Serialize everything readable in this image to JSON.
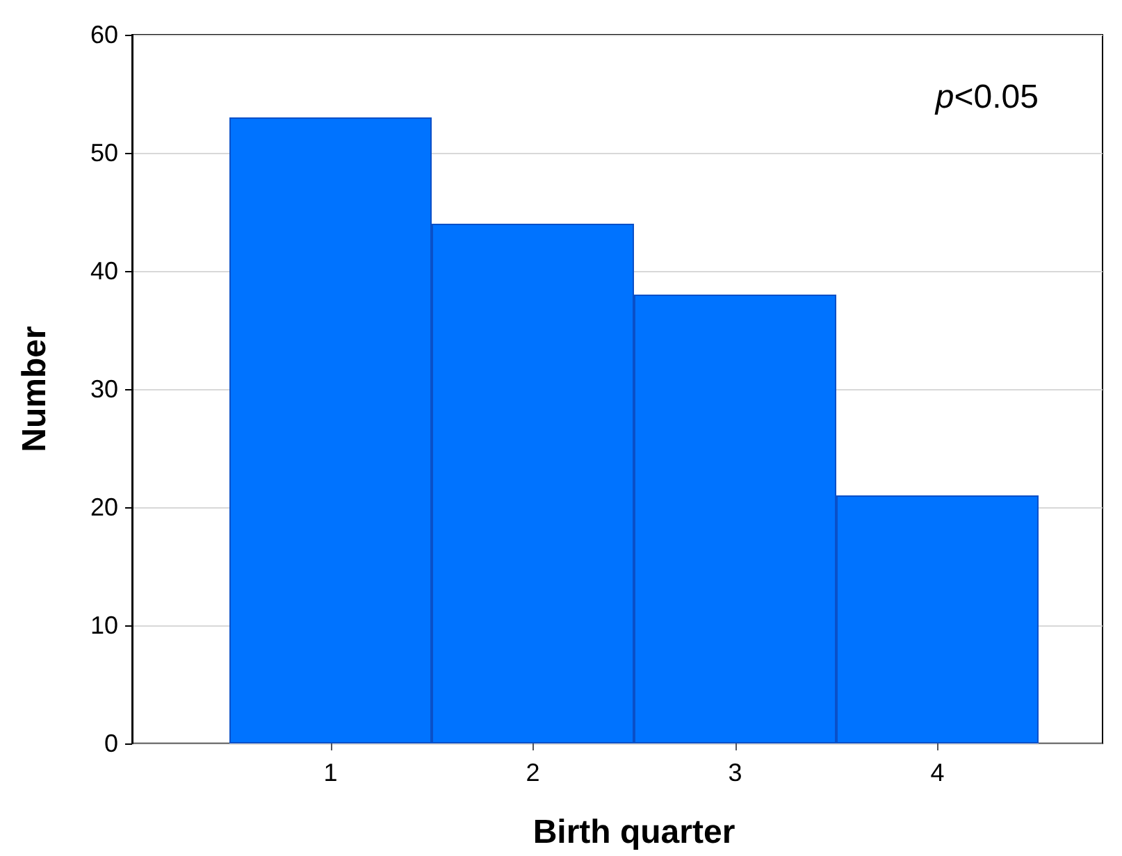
{
  "chart_data": {
    "type": "bar",
    "xlabel": "Birth quarter",
    "ylabel": "Number",
    "categories": [
      "1",
      "2",
      "3",
      "4"
    ],
    "values": [
      53,
      44,
      38,
      21
    ],
    "color": "#0073ff",
    "ylim": [
      0,
      60
    ],
    "yticks": [
      0,
      10,
      20,
      30,
      40,
      50,
      60
    ],
    "grid": "y",
    "annotations": [
      "p<0.05"
    ]
  }
}
